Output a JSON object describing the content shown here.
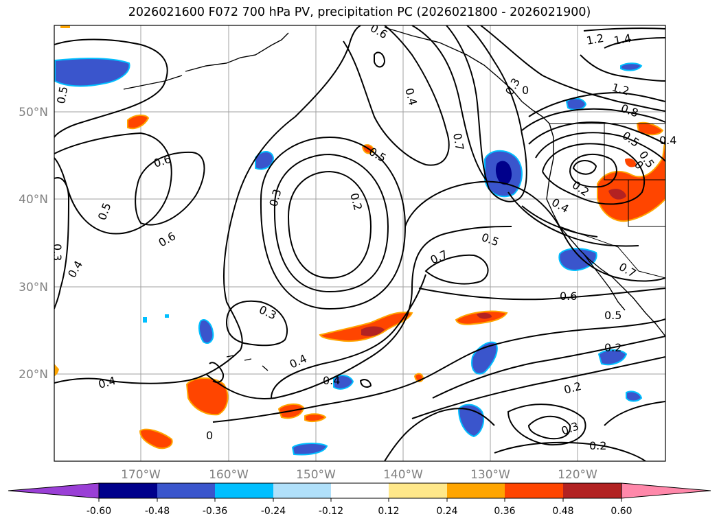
{
  "title": "2026021600 F072 700 hPa PV, precipitation PC (2026021800 - 2026021900)",
  "map": {
    "lon_range": [
      -180,
      -110
    ],
    "lat_range": [
      10,
      60
    ],
    "lat_labels": [
      "50°N",
      "40°N",
      "30°N",
      "20°N"
    ],
    "lon_labels": [
      "170°W",
      "160°W",
      "150°W",
      "140°W",
      "130°W",
      "120°W"
    ],
    "contour_labels": [
      "0.5",
      "0.6",
      "1.2",
      "1.4",
      "0.4",
      "0.7",
      "0.5",
      "0.7",
      "0.5",
      "0.6",
      "0.4",
      "0.3",
      "0.2",
      "0.3",
      "0.4",
      "0.5",
      "0.7",
      "0.6",
      "0.3",
      "0.4",
      "0.3",
      "0.2",
      "0.3",
      "0.2",
      "0.5",
      "0.4",
      "0.2",
      "0.8",
      "1.2",
      "0",
      "0",
      "0.5",
      "0.4",
      "0.6",
      "0.5",
      "0.4",
      "0",
      "0.2"
    ]
  },
  "colorbar": {
    "levels": [
      "-0.60",
      "-0.48",
      "-0.36",
      "-0.24",
      "-0.12",
      "0.12",
      "0.24",
      "0.36",
      "0.48",
      "0.60"
    ],
    "colors": [
      "#9a3fd6",
      "#00008b",
      "#3a55cc",
      "#00bfff",
      "#b0e0fa",
      "#ffffff",
      "#ffe88a",
      "#ffa500",
      "#ff4500",
      "#b22222",
      "#ff88aa"
    ]
  }
}
